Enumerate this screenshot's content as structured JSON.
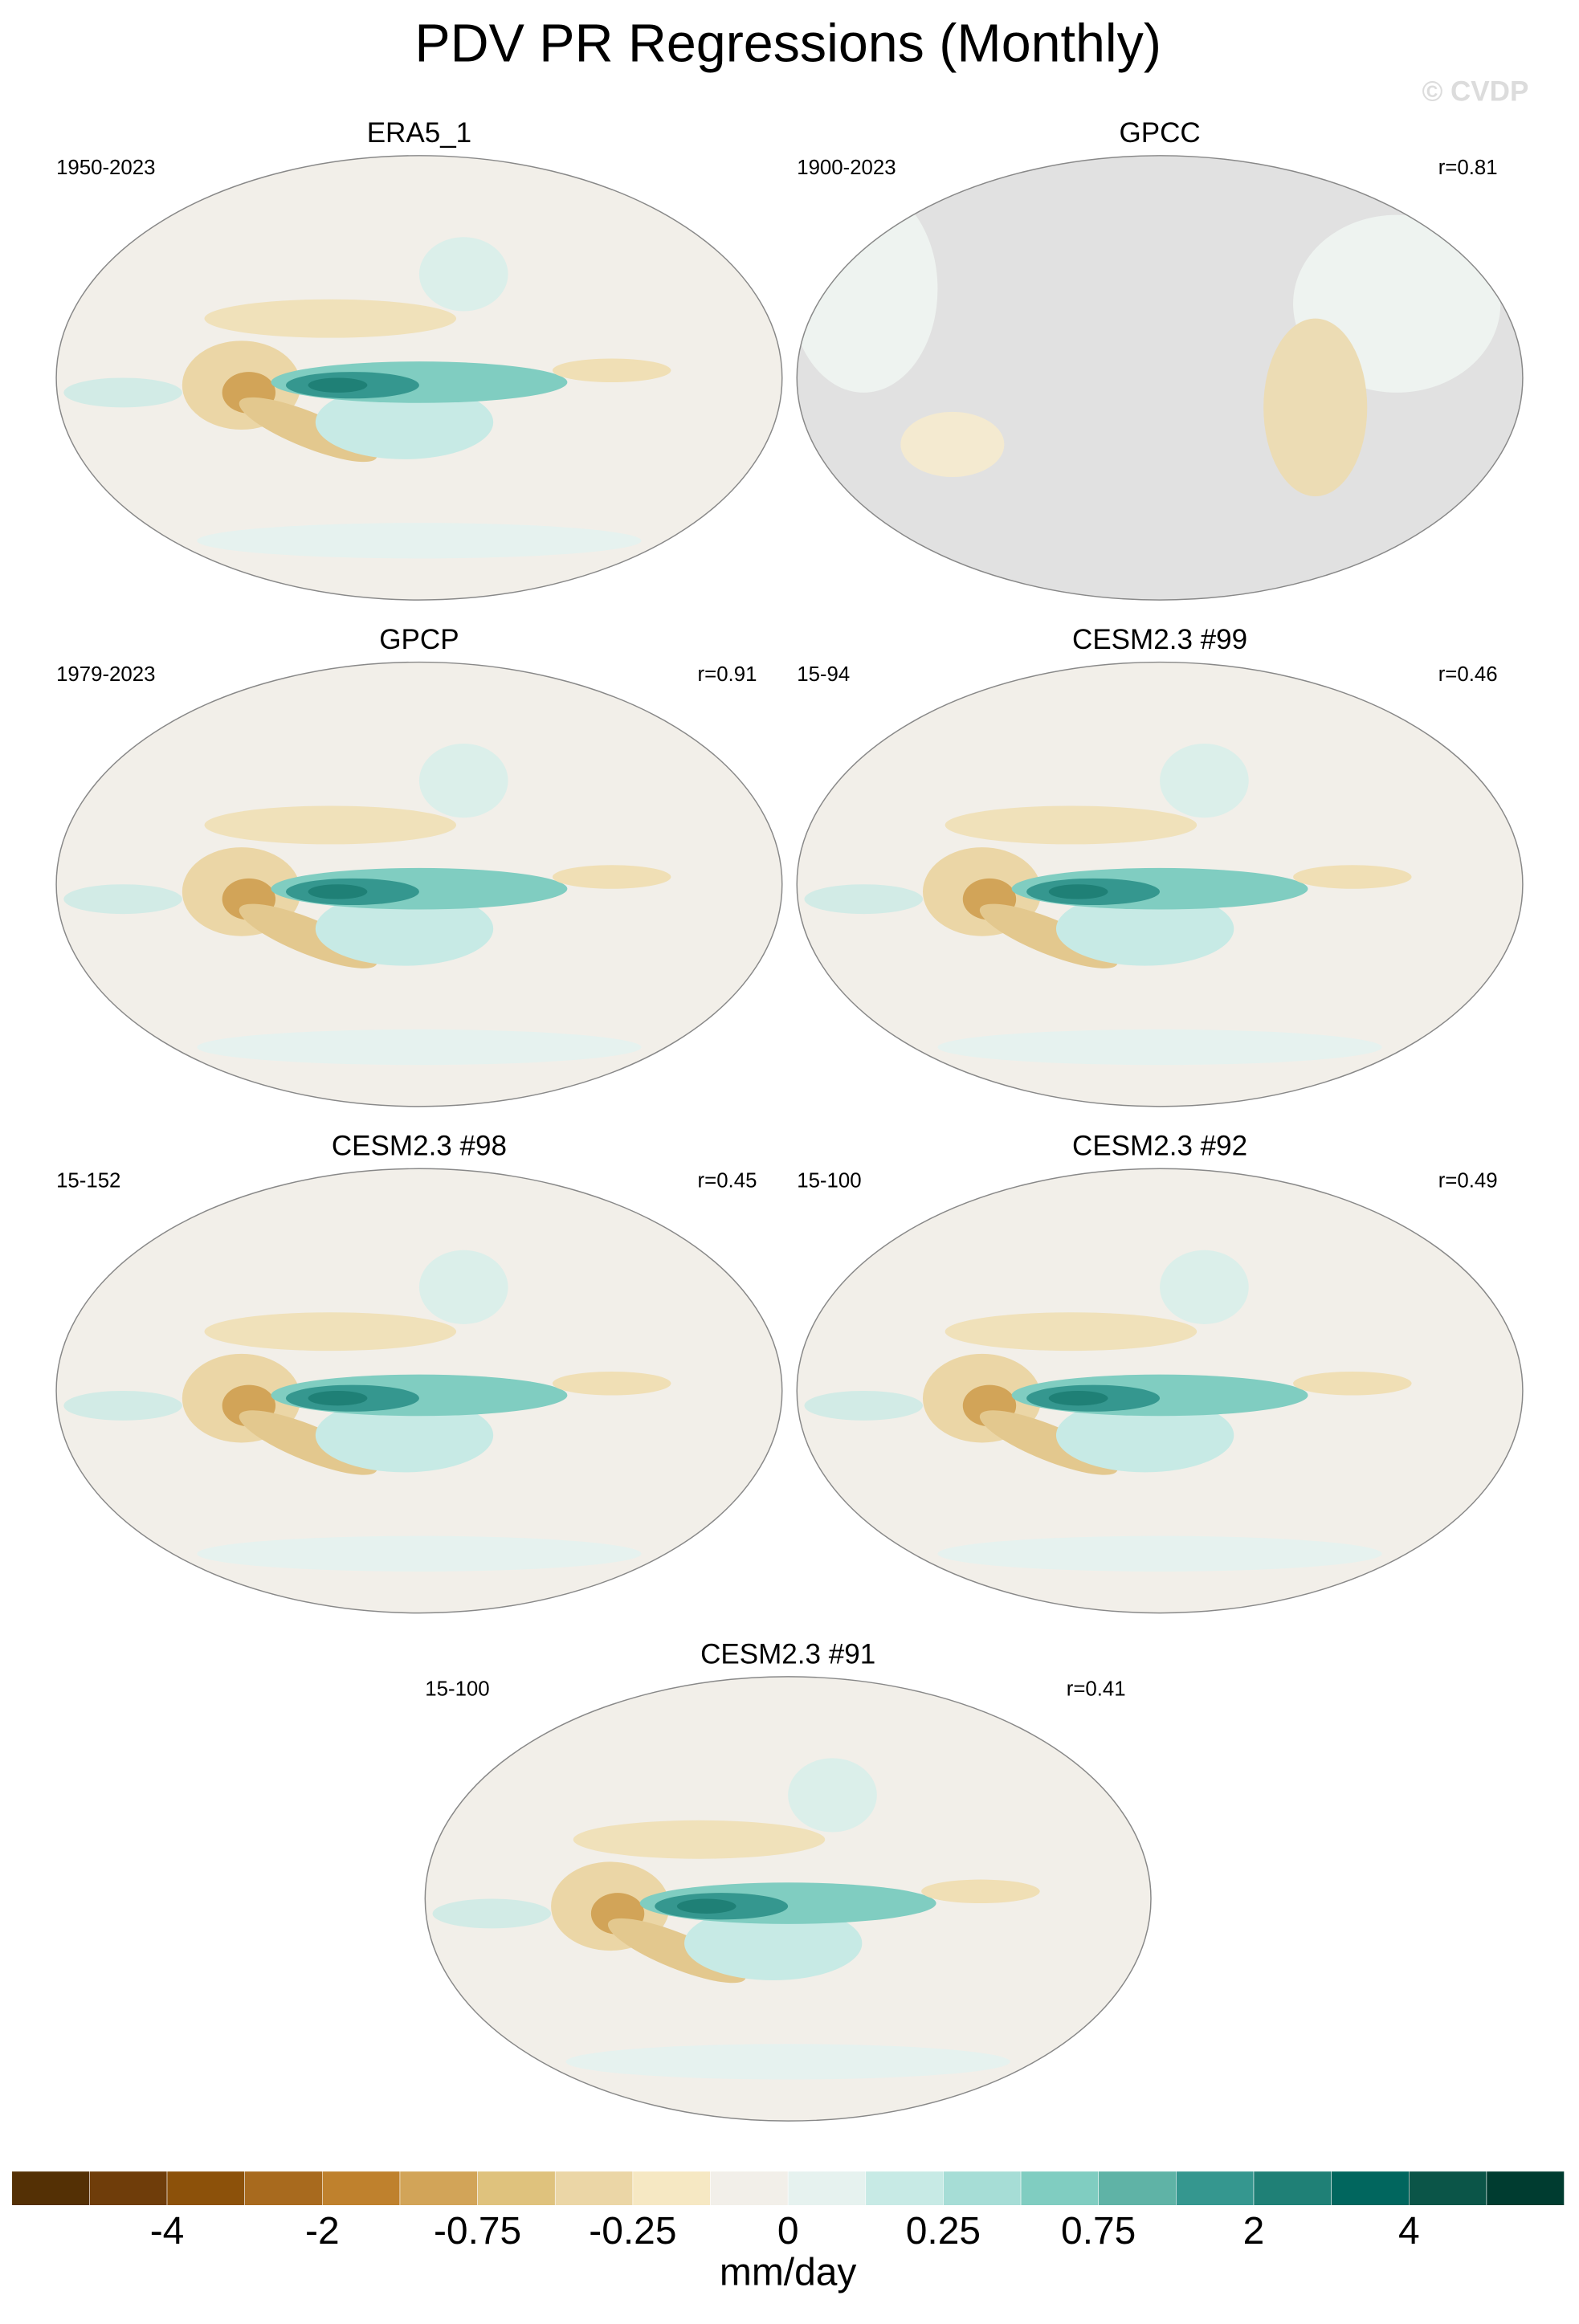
{
  "title": "PDV PR Regressions (Monthly)",
  "watermark": "© CVDP",
  "panels": [
    {
      "title": "ERA5_1",
      "left": "1950-2023"
    },
    {
      "title": "GPCC",
      "left": "1900-2023",
      "right": "r=0.81"
    },
    {
      "title": "GPCP",
      "left": "1979-2023",
      "right": "r=0.91"
    },
    {
      "title": "CESM2.3 #99",
      "left": "15-94",
      "right": "r=0.46"
    },
    {
      "title": "CESM2.3 #98",
      "left": "15-152",
      "right": "r=0.45"
    },
    {
      "title": "CESM2.3 #92",
      "left": "15-100",
      "right": "r=0.49"
    },
    {
      "title": "CESM2.3 #91",
      "left": "15-100",
      "right": "r=0.41"
    }
  ],
  "colorbar": {
    "colors": [
      "#543005",
      "#6f3d0a",
      "#8c510a",
      "#a86a1e",
      "#bf812d",
      "#d2a458",
      "#dfc27d",
      "#ebd6a6",
      "#f6e8c3",
      "#f2efe9",
      "#e6f2ef",
      "#c7eae5",
      "#a6ddd6",
      "#80cdc1",
      "#5fb3a6",
      "#35978f",
      "#1f8076",
      "#01665e",
      "#0b5548",
      "#003c30"
    ],
    "ticks": [
      -4,
      -2,
      -0.75,
      -0.25,
      0,
      0.25,
      0.75,
      2,
      4
    ],
    "unit": "mm/day"
  }
}
